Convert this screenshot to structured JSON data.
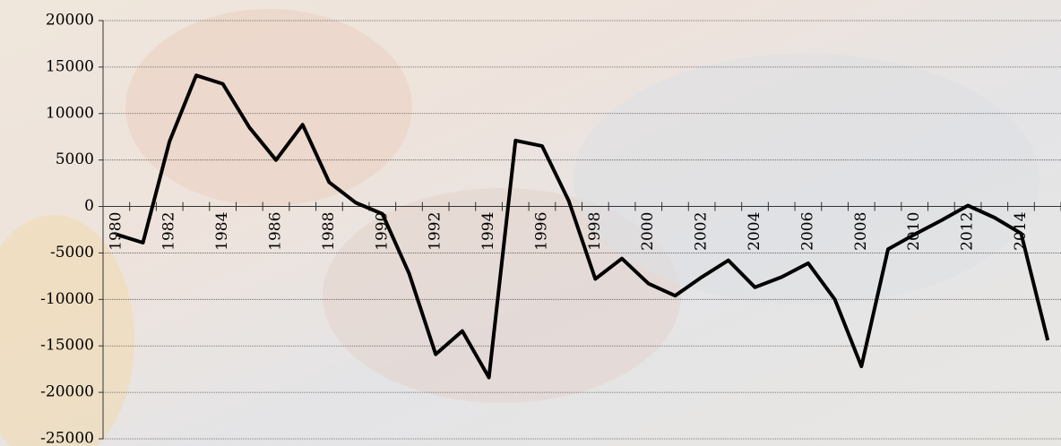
{
  "chart_data": {
    "type": "line",
    "categories": [
      "1980",
      null,
      "1982",
      null,
      "1984",
      null,
      "1986",
      null,
      "1988",
      null,
      "1990",
      null,
      "1992",
      null,
      "1994",
      null,
      "1996",
      null,
      "1998",
      null,
      "2000",
      null,
      "2002",
      null,
      "2004",
      null,
      "2006",
      null,
      "2008",
      null,
      "2010",
      null,
      "2012",
      null,
      "2014",
      null
    ],
    "series": [
      {
        "color": "#000000",
        "values": [
          -3000,
          -3900,
          7000,
          14100,
          13200,
          8500,
          5000,
          8800,
          2600,
          400,
          -800,
          -7200,
          -15900,
          -13400,
          -18400,
          7100,
          6500,
          600,
          -7800,
          -5600,
          -8300,
          -9600,
          -7600,
          -5800,
          -8700,
          -7600,
          -6100,
          -10000,
          -17200,
          -4600,
          -3000,
          -1500,
          100,
          -1200,
          -2900,
          -14400
        ]
      }
    ],
    "ylim": [
      -25000,
      20000
    ],
    "yticks": [
      -25000,
      -20000,
      -15000,
      -10000,
      -5000,
      0,
      5000,
      10000,
      15000,
      20000
    ],
    "grid": true
  }
}
